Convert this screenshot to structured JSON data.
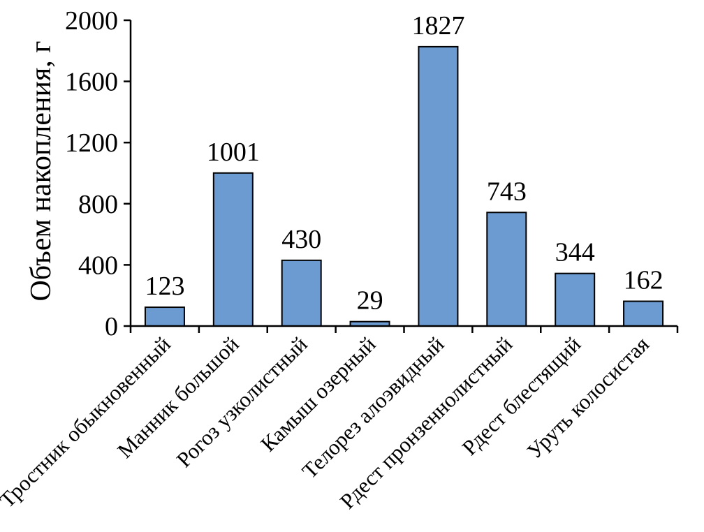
{
  "chart_data": {
    "type": "bar",
    "title": "",
    "xlabel": "",
    "ylabel": "Объем накопления, г",
    "ylim": [
      0,
      2000
    ],
    "yticks": [
      0,
      400,
      800,
      1200,
      1600,
      2000
    ],
    "grid": false,
    "legend": "none",
    "categories": [
      "Тростник обыкновенный",
      "Манник большой",
      "Рогоз узколистный",
      "Камыш озерный",
      "Телорез алоэвидный",
      "Рдест пронзеннолистный",
      "Рдест блестящий",
      "Уруть колосистая"
    ],
    "values": [
      123,
      1001,
      430,
      29,
      1827,
      743,
      344,
      162
    ],
    "bar_color": "#6c9bd2"
  }
}
